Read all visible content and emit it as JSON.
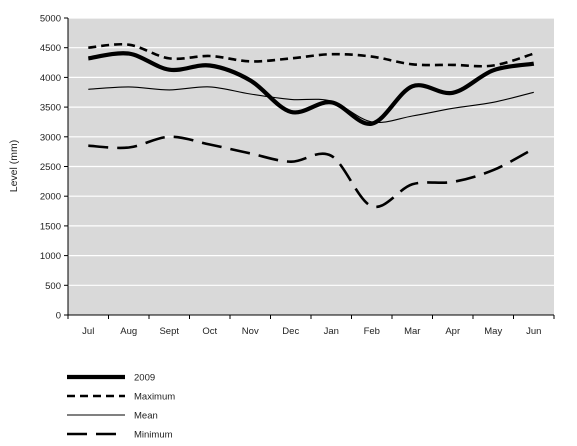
{
  "chart_data": {
    "type": "line",
    "ylabel": "Level (mm)",
    "xlabel": "",
    "title": "",
    "ylim": [
      0,
      5000
    ],
    "yticks": [
      "0",
      "500",
      "1000",
      "1500",
      "2000",
      "2500",
      "3000",
      "3500",
      "4000",
      "4500",
      "5000"
    ],
    "categories": [
      "Jul",
      "Aug",
      "Sept",
      "Oct",
      "Nov",
      "Dec",
      "Jan",
      "Feb",
      "Mar",
      "Apr",
      "May",
      "Jun"
    ],
    "grid": true,
    "legend_position": "bottom-left",
    "series": [
      {
        "name": "2009",
        "style": "thick-solid",
        "color": "#000000",
        "values": [
          4320,
          4400,
          4130,
          4200,
          3950,
          3420,
          3580,
          3220,
          3850,
          3740,
          4120,
          4230
        ]
      },
      {
        "name": "Maximum",
        "style": "dashed",
        "color": "#000000",
        "values": [
          4500,
          4550,
          4320,
          4360,
          4270,
          4320,
          4390,
          4350,
          4220,
          4210,
          4200,
          4400
        ]
      },
      {
        "name": "Mean",
        "style": "thin-solid",
        "color": "#000000",
        "values": [
          3800,
          3840,
          3790,
          3840,
          3720,
          3630,
          3600,
          3250,
          3350,
          3480,
          3580,
          3750
        ]
      },
      {
        "name": "Minimum",
        "style": "long-dashed",
        "color": "#000000",
        "values": [
          2850,
          2820,
          3000,
          2870,
          2720,
          2580,
          2680,
          1830,
          2200,
          2240,
          2440,
          2800
        ]
      }
    ],
    "plot_background": "#d9d9d9"
  }
}
